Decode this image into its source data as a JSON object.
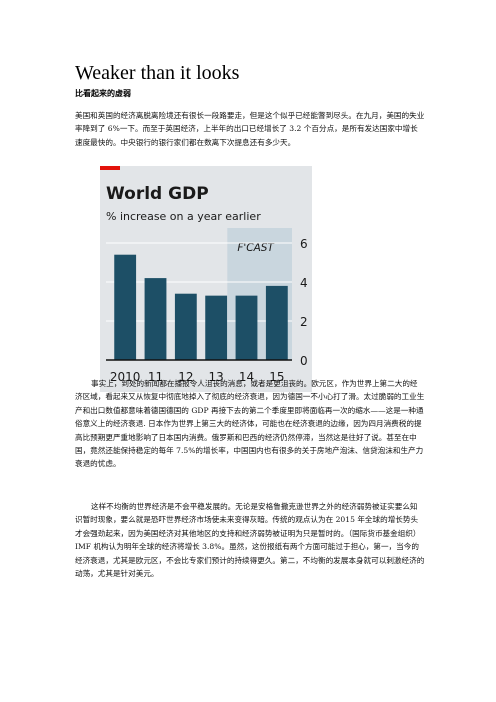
{
  "article": {
    "title": "Weaker than it looks",
    "subtitle": "比看起来的虚弱",
    "paragraphs": [
      "美国和英国的经济离脱离险境还有很长一段路要走，但是这个似乎已经能瞥到尽头。在九月，美国的失业率降到了 6%一下。而至于英国经济，上半年的出口已经增长了 3.2 个百分点，是所有发达国家中增长速度最快的。中央银行的银行家们都在数离下次提息还有多少天。",
      "事实上，到处的新闻都在播报令人沮丧的消息，或者是更沮丧的。欧元区，作为世界上第二大的经济区域，看起来又从恢复中彻底地掉入了彻底的经济衰退，因为德国一不小心打了滑。太过脆弱的工业生产和出口数值都意味着德国德国的 GDP 再接下去的第二个季度里即将面临再一次的缩水——这是一种通俗意义上的经济衰退. 日本作为世界上第三大的经济体，可能也在经济衰退的边缘，因为四月消费税的提高比预期更严重地影响了日本国内消费。俄罗斯和巴西的经济仍然停滞，当然这是往好了说。甚至在中国，竟然还能保持稳定的每年 7.5%的增长率，中国国内也有很多的关于房地产泡沫、信贷泡沫和生产力衰退的忧虑。",
      "这样不均衡的世界经济是不会平稳发展的。无论是安格鲁撒克逊世界之外的经济弱势被证实要么知识暂时现象，要么就是恐吓世界经济市场使未来变得灰暗。传统的观点认为在 2015 年全球的增长势头才会强劲起来，因为美国经济对其他地区的支持和经济弱势被证明为只是暂时的。（国际货币基金组织）IMF 机构认为明年全球的经济将增长 3.8%。虽然，这份报纸有两个方面可能过于担心，第一，当今的经济衰退，尤其是欧元区，不会比专家们预计的持续得更久。第二，不均衡的发展本身就可以刺激经济的动荡，尤其是针对美元。"
    ]
  },
  "chart_data": {
    "type": "bar",
    "title": "World GDP",
    "subtitle": "% increase on a year earlier",
    "categories": [
      "2010",
      "11",
      "12",
      "13",
      "14",
      "15"
    ],
    "values": [
      5.4,
      4.2,
      3.4,
      3.3,
      3.3,
      3.8
    ],
    "forecast_label": "F'CAST",
    "forecast_categories": [
      "14",
      "15"
    ],
    "ylim": [
      0,
      6
    ],
    "yticks": [
      "0",
      "2",
      "4",
      "6"
    ],
    "grid": true,
    "colors": {
      "bar": "#1d4f66",
      "background": "#e2e5e8",
      "forecast_band": "#c9d6de",
      "accent": "#e3120b",
      "grid": "#ffffff",
      "text": "#1a1a1a"
    }
  }
}
